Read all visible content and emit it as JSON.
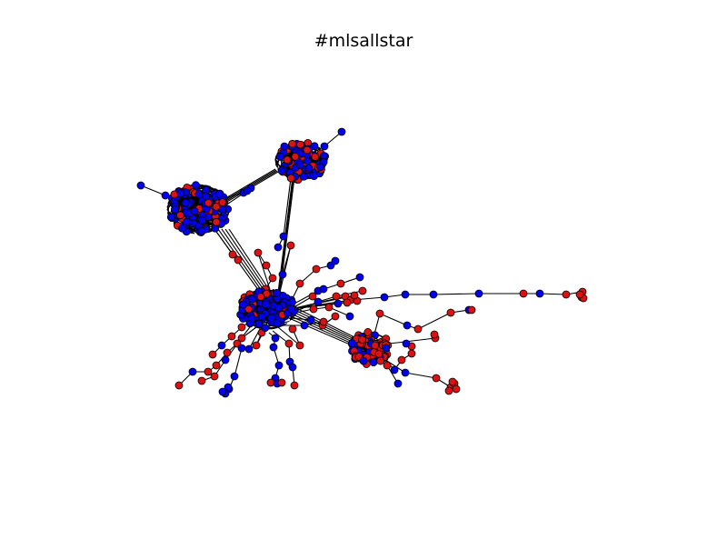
{
  "figure": {
    "title": "#mlsallstar",
    "colors": {
      "background": "#ffffff",
      "node_blue": "#0000ee",
      "node_red": "#dd1111",
      "node_outline": "#000000",
      "edge": "#000000"
    },
    "node_kinds": [
      "blue",
      "red"
    ]
  }
}
